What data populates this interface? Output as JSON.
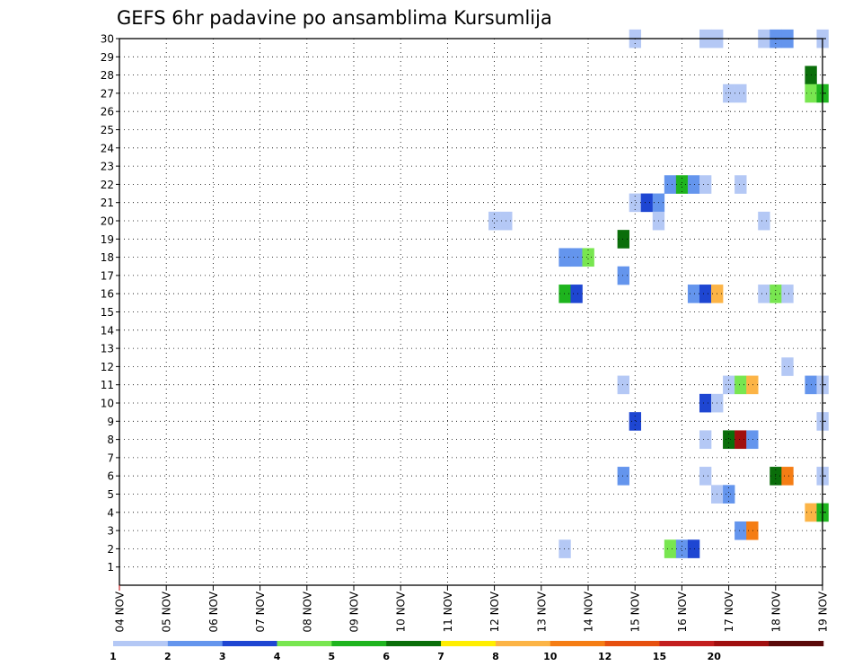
{
  "chart_data": {
    "type": "heatmap",
    "title": "GEFS 6hr padavine po ansamblima Kursumlija",
    "x_ticks": [
      "04 NOV",
      "05 NOV",
      "06 NOV",
      "07 NOV",
      "08 NOV",
      "09 NOV",
      "10 NOV",
      "11 NOV",
      "12 NOV",
      "13 NOV",
      "14 NOV",
      "15 NOV",
      "16 NOV",
      "17 NOV",
      "18 NOV",
      "19 NOV"
    ],
    "xlim_days": [
      0,
      15
    ],
    "y_ticks": [
      "1",
      "2",
      "3",
      "4",
      "5",
      "6",
      "7",
      "8",
      "9",
      "10",
      "11",
      "12",
      "13",
      "14",
      "15",
      "16",
      "17",
      "18",
      "19",
      "20",
      "21",
      "22",
      "23",
      "24",
      "25",
      "26",
      "27",
      "28",
      "29",
      "30"
    ],
    "ylim": [
      0,
      30
    ],
    "grid": true,
    "grid_style": "dotted",
    "legend_placement": "bottom",
    "levels": [
      {
        "label": "1",
        "color": "#b4c8f5"
      },
      {
        "label": "2",
        "color": "#6495ed"
      },
      {
        "label": "3",
        "color": "#1e46d2"
      },
      {
        "label": "4",
        "color": "#78e650"
      },
      {
        "label": "5",
        "color": "#1eb41e"
      },
      {
        "label": "6",
        "color": "#0a6e0a"
      },
      {
        "label": "7",
        "color": "#ffee00"
      },
      {
        "label": "8",
        "color": "#fcb446"
      },
      {
        "label": "10",
        "color": "#f57d14"
      },
      {
        "label": "12",
        "color": "#e6500f"
      },
      {
        "label": "15",
        "color": "#c31e1e"
      },
      {
        "label": "20",
        "color": "#a00f0f"
      },
      {
        "label": "",
        "color": "#5a0a0a"
      }
    ],
    "cells_note": "each cell: [member, day offset from 04 NOV 00Z, precip class index into levels]",
    "cells": [
      [
        30,
        11.0,
        0
      ],
      [
        30,
        12.5,
        0
      ],
      [
        30,
        12.75,
        0
      ],
      [
        30,
        13.75,
        0
      ],
      [
        30,
        14.0,
        1
      ],
      [
        30,
        14.25,
        1
      ],
      [
        30,
        15.0,
        0
      ],
      [
        28,
        14.75,
        5
      ],
      [
        27,
        13.0,
        0
      ],
      [
        27,
        13.25,
        0
      ],
      [
        27,
        14.75,
        3
      ],
      [
        27,
        15.0,
        4
      ],
      [
        22,
        11.75,
        1
      ],
      [
        22,
        12.0,
        4
      ],
      [
        22,
        12.25,
        1
      ],
      [
        22,
        12.5,
        0
      ],
      [
        22,
        13.25,
        0
      ],
      [
        21,
        11.0,
        0
      ],
      [
        21,
        11.25,
        2
      ],
      [
        21,
        11.5,
        1
      ],
      [
        20,
        8.0,
        0
      ],
      [
        20,
        8.25,
        0
      ],
      [
        20,
        11.5,
        0
      ],
      [
        20,
        13.75,
        0
      ],
      [
        19,
        10.75,
        5
      ],
      [
        18,
        9.5,
        1
      ],
      [
        18,
        9.75,
        1
      ],
      [
        18,
        10.0,
        3
      ],
      [
        17,
        10.75,
        1
      ],
      [
        16,
        9.5,
        4
      ],
      [
        16,
        9.75,
        2
      ],
      [
        16,
        12.25,
        1
      ],
      [
        16,
        12.5,
        2
      ],
      [
        16,
        12.75,
        7
      ],
      [
        16,
        13.75,
        0
      ],
      [
        16,
        14.0,
        3
      ],
      [
        16,
        14.25,
        0
      ],
      [
        12,
        14.25,
        0
      ],
      [
        11,
        10.75,
        0
      ],
      [
        11,
        13.0,
        0
      ],
      [
        11,
        13.25,
        3
      ],
      [
        11,
        13.5,
        7
      ],
      [
        11,
        14.75,
        1
      ],
      [
        11,
        15.0,
        0
      ],
      [
        10,
        12.5,
        2
      ],
      [
        10,
        12.75,
        0
      ],
      [
        9,
        11.0,
        2
      ],
      [
        9,
        15.0,
        0
      ],
      [
        8,
        12.5,
        0
      ],
      [
        8,
        13.0,
        5
      ],
      [
        8,
        13.25,
        11
      ],
      [
        8,
        13.5,
        1
      ],
      [
        6,
        10.75,
        1
      ],
      [
        6,
        12.5,
        0
      ],
      [
        6,
        14.0,
        5
      ],
      [
        6,
        14.25,
        8
      ],
      [
        6,
        15.0,
        0
      ],
      [
        5,
        12.75,
        0
      ],
      [
        5,
        13.0,
        1
      ],
      [
        4,
        14.75,
        7
      ],
      [
        4,
        15.0,
        4
      ],
      [
        3,
        13.25,
        1
      ],
      [
        3,
        13.5,
        8
      ],
      [
        2,
        9.5,
        0
      ],
      [
        2,
        11.75,
        3
      ],
      [
        2,
        12.0,
        1
      ],
      [
        2,
        12.25,
        2
      ]
    ]
  }
}
